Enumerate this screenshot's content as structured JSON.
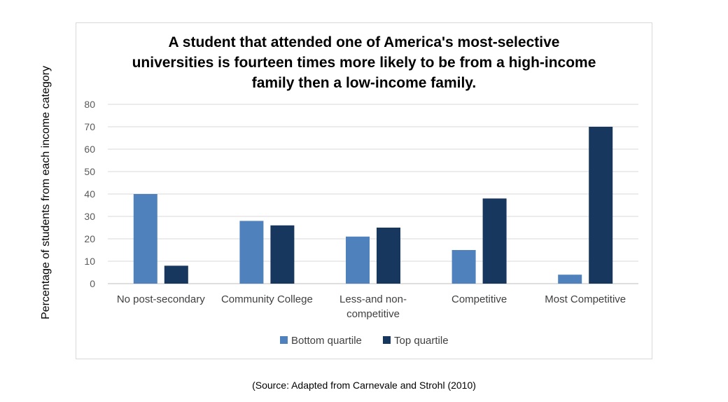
{
  "chart_data": {
    "type": "bar",
    "title": "A student that attended one of America's most-selective universities is fourteen times more likely to be from a high-income family then a low-income family.",
    "ylabel": "Percentage of students from each income category",
    "xlabel": "",
    "ylim": [
      0,
      80
    ],
    "yticks": [
      0,
      10,
      20,
      30,
      40,
      50,
      60,
      70,
      80
    ],
    "grid": true,
    "legend_position": "bottom",
    "categories": [
      [
        "No post-secondary"
      ],
      [
        "Community College"
      ],
      [
        "Less-and non-",
        "competitive"
      ],
      [
        "Competitive"
      ],
      [
        "Most Competitive"
      ]
    ],
    "series": [
      {
        "name": "Bottom quartile",
        "color": "#4f81bd",
        "values": [
          40,
          28,
          21,
          15,
          4
        ]
      },
      {
        "name": "Top quartile",
        "color": "#17375e",
        "values": [
          8,
          26,
          25,
          38,
          70
        ]
      }
    ]
  },
  "source": "(Source: Adapted from Carnevale and Strohl (2010)"
}
